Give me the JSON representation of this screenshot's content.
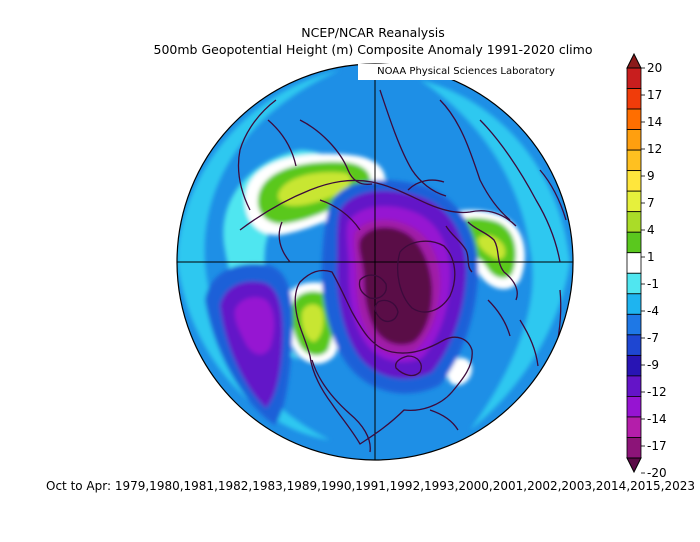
{
  "header": {
    "title_line1": "NCEP/NCAR Reanalysis",
    "title_line2": "500mb Geopotential Height (m) Composite Anomaly 1991-2020 climo",
    "credit": "NOAA Physical Sciences Laboratory"
  },
  "footer": {
    "period_text": "Oct to Apr: 1979,1980,1981,1982,1983,1989,1990,1991,1992,1993,2000,2001,2002,2003,2014,2015,2023"
  },
  "colorbar": {
    "labels": [
      "20",
      "17",
      "14",
      "12",
      "9",
      "7",
      "4",
      "1",
      "-1",
      "-4",
      "-7",
      "-9",
      "-12",
      "-14",
      "-17",
      "-20"
    ],
    "colors": [
      "#8b1a1a",
      "#c81e1e",
      "#f03c0a",
      "#ff6e00",
      "#ff9f0f",
      "#ffc020",
      "#ffe63c",
      "#e6f03c",
      "#aadc28",
      "#5ac81e",
      "#ffffff",
      "#50e6f0",
      "#1eb4f0",
      "#1e78e6",
      "#1e46d2",
      "#2814b4",
      "#6414c8",
      "#9614d2",
      "#b41eaa",
      "#8c1478",
      "#5a0a46"
    ]
  },
  "map": {
    "projection": "north-polar-stereographic",
    "colors": {
      "ocean_base": "#1e8fe6",
      "light_blue": "#2dc8f0",
      "cyan": "#50e6f0",
      "white": "#ffffff",
      "green": "#5ac81e",
      "yellow_green": "#c8e632",
      "blue": "#1e60d8",
      "purple": "#6414c8",
      "violet": "#9614d2",
      "magenta": "#a01aa8",
      "dark_purple": "#5a0a46",
      "coast": "#3c0a3c"
    }
  }
}
